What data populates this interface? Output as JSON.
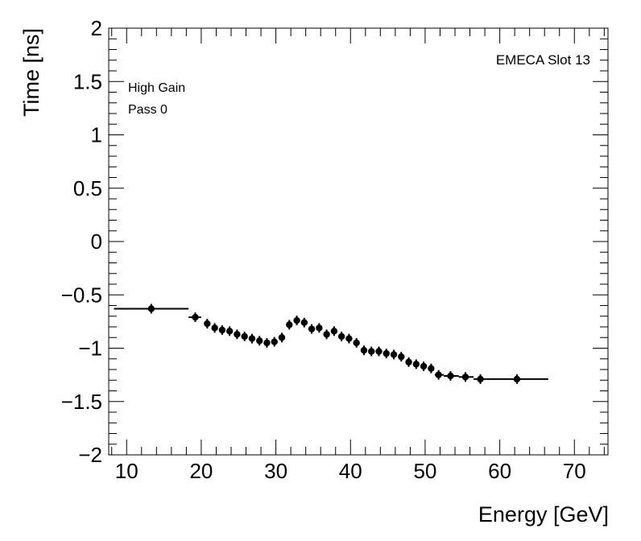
{
  "chart_data": {
    "type": "scatter",
    "title": "",
    "xlabel": "Energy [GeV]",
    "ylabel": "Time [ns]",
    "xlim": [
      7.6,
      74.5
    ],
    "ylim": [
      -2,
      2
    ],
    "x_ticks": [
      10,
      20,
      30,
      40,
      50,
      60,
      70
    ],
    "x_tick_labels": [
      "10",
      "20",
      "30",
      "40",
      "50",
      "60",
      "70"
    ],
    "y_ticks": [
      -2,
      -1.5,
      -1,
      -0.5,
      0,
      0.5,
      1,
      1.5,
      2
    ],
    "y_tick_labels": [
      "−2",
      "−1.5",
      "−1",
      "−0.5",
      "0",
      "0.5",
      "1",
      "1.5",
      "2"
    ],
    "grid": false,
    "annotations": [
      {
        "text": "High Gain",
        "position": "top-left"
      },
      {
        "text": "Pass 0",
        "position": "top-left"
      },
      {
        "text": "EMECA Slot 13",
        "position": "top-right"
      }
    ],
    "series": [
      {
        "name": "High Gain Pass 0",
        "points": [
          {
            "x": 13.3,
            "xlo": 8.3,
            "xhi": 18.3,
            "y": -0.63,
            "yerr": 0.01
          },
          {
            "x": 19.2,
            "xlo": 18.3,
            "xhi": 20.0,
            "y": -0.71,
            "yerr": 0.02
          },
          {
            "x": 20.8,
            "y": -0.77,
            "yerr": 0.04
          },
          {
            "x": 21.8,
            "y": -0.81,
            "yerr": 0.04
          },
          {
            "x": 22.8,
            "y": -0.83,
            "yerr": 0.04
          },
          {
            "x": 23.8,
            "y": -0.84,
            "yerr": 0.04
          },
          {
            "x": 24.8,
            "y": -0.87,
            "yerr": 0.04
          },
          {
            "x": 25.8,
            "y": -0.89,
            "yerr": 0.04
          },
          {
            "x": 26.8,
            "y": -0.91,
            "yerr": 0.04
          },
          {
            "x": 27.8,
            "y": -0.93,
            "yerr": 0.04
          },
          {
            "x": 28.8,
            "y": -0.95,
            "yerr": 0.04
          },
          {
            "x": 29.8,
            "y": -0.94,
            "yerr": 0.04
          },
          {
            "x": 30.8,
            "y": -0.9,
            "yerr": 0.04
          },
          {
            "x": 31.8,
            "y": -0.78,
            "yerr": 0.04
          },
          {
            "x": 32.8,
            "y": -0.74,
            "yerr": 0.04
          },
          {
            "x": 33.8,
            "y": -0.76,
            "yerr": 0.04
          },
          {
            "x": 34.8,
            "y": -0.82,
            "yerr": 0.04
          },
          {
            "x": 35.8,
            "y": -0.81,
            "yerr": 0.04
          },
          {
            "x": 36.8,
            "y": -0.87,
            "yerr": 0.04
          },
          {
            "x": 37.8,
            "y": -0.84,
            "yerr": 0.04
          },
          {
            "x": 38.8,
            "y": -0.89,
            "yerr": 0.04
          },
          {
            "x": 39.8,
            "y": -0.91,
            "yerr": 0.04
          },
          {
            "x": 40.8,
            "y": -0.95,
            "yerr": 0.04
          },
          {
            "x": 41.8,
            "y": -1.02,
            "yerr": 0.04
          },
          {
            "x": 42.8,
            "y": -1.03,
            "yerr": 0.04
          },
          {
            "x": 43.8,
            "y": -1.03,
            "yerr": 0.04
          },
          {
            "x": 44.8,
            "y": -1.05,
            "yerr": 0.04
          },
          {
            "x": 45.8,
            "y": -1.06,
            "yerr": 0.04
          },
          {
            "x": 46.8,
            "y": -1.08,
            "yerr": 0.04
          },
          {
            "x": 47.8,
            "y": -1.13,
            "yerr": 0.04
          },
          {
            "x": 48.8,
            "y": -1.15,
            "yerr": 0.04
          },
          {
            "x": 49.8,
            "y": -1.17,
            "yerr": 0.04
          },
          {
            "x": 50.8,
            "y": -1.19,
            "yerr": 0.04
          },
          {
            "x": 51.8,
            "xlo": 51.3,
            "xhi": 52.5,
            "y": -1.25,
            "yerr": 0.04
          },
          {
            "x": 53.4,
            "xlo": 52.5,
            "xhi": 54.5,
            "y": -1.26,
            "yerr": 0.02
          },
          {
            "x": 55.4,
            "xlo": 54.5,
            "xhi": 56.5,
            "y": -1.27,
            "yerr": 0.02
          },
          {
            "x": 57.4,
            "xlo": 56.5,
            "xhi": 58.3,
            "y": -1.29,
            "yerr": 0.03
          },
          {
            "x": 62.3,
            "xlo": 58.3,
            "xhi": 66.5,
            "y": -1.29,
            "yerr": 0.01
          }
        ]
      }
    ]
  }
}
